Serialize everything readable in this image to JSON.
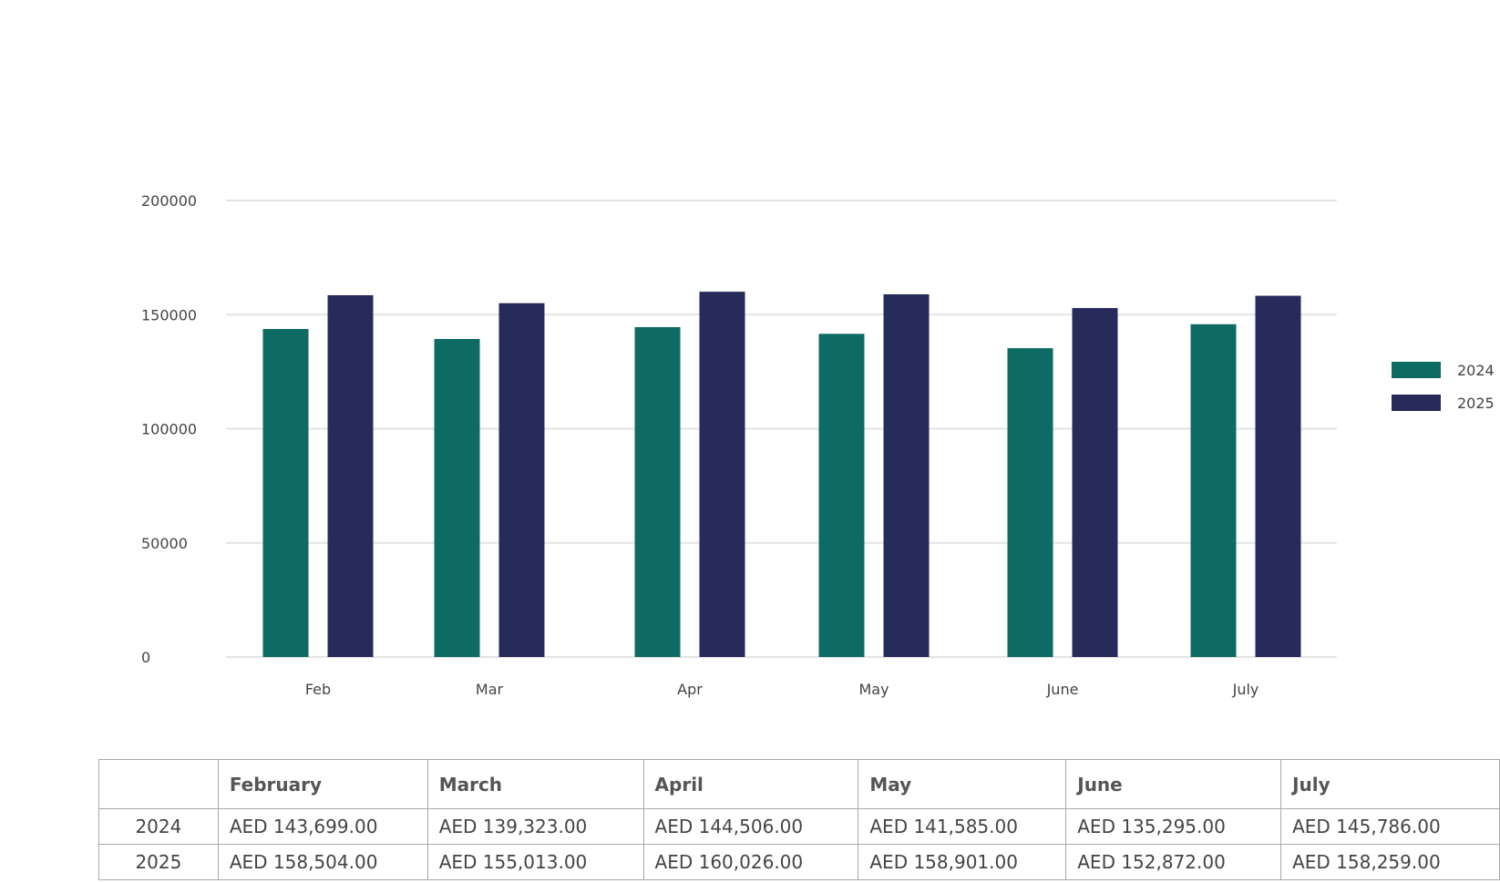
{
  "chart_data": {
    "type": "bar",
    "categories": [
      "Feb",
      "Mar",
      "Apr",
      "May",
      "June",
      "July"
    ],
    "series": [
      {
        "name": "2024",
        "values": [
          143699,
          139323,
          144506,
          141585,
          135295,
          145786
        ],
        "color": "#0d6b63"
      },
      {
        "name": "2025",
        "values": [
          158504,
          155013,
          160026,
          158901,
          152872,
          158259
        ],
        "color": "#262b5a"
      }
    ],
    "yticks": [
      "0",
      "50000",
      "100000",
      "150000",
      "200000"
    ],
    "ylim": [
      0,
      200000
    ],
    "grid": true,
    "legend_position": "right"
  },
  "table": {
    "columns": [
      "",
      "February",
      "March",
      "April",
      "May",
      "June",
      "July"
    ],
    "rows": [
      {
        "year": "2024",
        "cells": [
          "AED 143,699.00",
          "AED 139,323.00",
          "AED 144,506.00",
          "AED 141,585.00",
          "AED 135,295.00",
          "AED 145,786.00"
        ]
      },
      {
        "year": "2025",
        "cells": [
          "AED 158,504.00",
          "AED 155,013.00",
          "AED 160,026.00",
          "AED 158,901.00",
          "AED 152,872.00",
          "AED 158,259.00"
        ]
      }
    ]
  }
}
